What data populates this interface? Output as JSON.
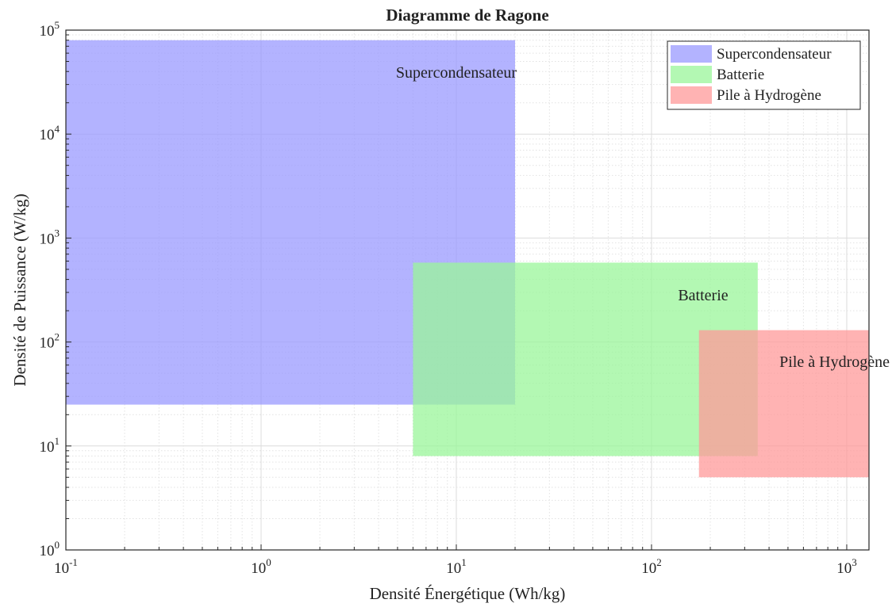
{
  "chart_data": {
    "type": "area",
    "title": "Diagramme de Ragone",
    "xlabel": "Densité Énergétique (Wh/kg)",
    "ylabel": "Densité de Puissance (W/kg)",
    "xscale": "log",
    "yscale": "log",
    "xlim": [
      0.1,
      1300
    ],
    "ylim": [
      1,
      100000
    ],
    "grid": true,
    "minor_grid": true,
    "x_ticks": [
      {
        "base": "10",
        "exp": "-1",
        "value": 0.1
      },
      {
        "base": "10",
        "exp": "0",
        "value": 1
      },
      {
        "base": "10",
        "exp": "1",
        "value": 10
      },
      {
        "base": "10",
        "exp": "2",
        "value": 100
      },
      {
        "base": "10",
        "exp": "3",
        "value": 1000
      }
    ],
    "y_ticks": [
      {
        "base": "10",
        "exp": "0",
        "value": 1
      },
      {
        "base": "10",
        "exp": "1",
        "value": 10
      },
      {
        "base": "10",
        "exp": "2",
        "value": 100
      },
      {
        "base": "10",
        "exp": "3",
        "value": 1000
      },
      {
        "base": "10",
        "exp": "4",
        "value": 10000
      },
      {
        "base": "10",
        "exp": "5",
        "value": 100000
      }
    ],
    "legend_position": "top-right",
    "series": [
      {
        "name": "Supercondensateur",
        "color": "#9999ff",
        "x_range": [
          0.1,
          20
        ],
        "y_range": [
          25,
          80000
        ],
        "label": "Supercondensateur"
      },
      {
        "name": "Batterie",
        "color": "#99f599",
        "x_range": [
          6,
          350
        ],
        "y_range": [
          8,
          580
        ],
        "label": "Batterie"
      },
      {
        "name": "Pile à Hydrogène",
        "color": "#ff9999",
        "x_range": [
          175,
          1300
        ],
        "y_range": [
          5,
          130
        ],
        "label": "Pile à Hydrogène"
      }
    ]
  }
}
